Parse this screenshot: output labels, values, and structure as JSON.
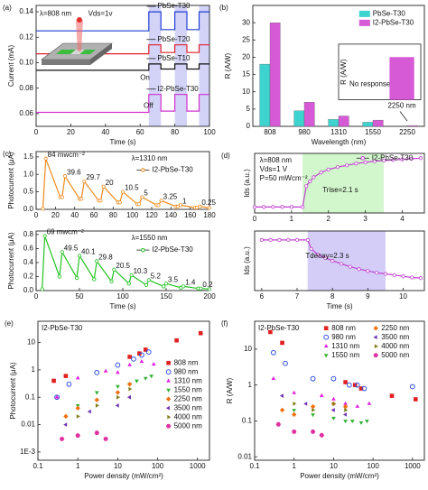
{
  "chart_data": [
    {
      "type": "line",
      "panel_label": "(a)",
      "x": [
        0,
        65,
        65,
        72,
        72,
        80,
        80,
        87,
        87,
        94,
        94,
        100
      ],
      "series": [
        {
          "name": "PbSe-T30",
          "color": "#1f3fd6",
          "values": [
            0.125,
            0.125,
            0.14,
            0.14,
            0.126,
            0.126,
            0.14,
            0.14,
            0.126,
            0.126,
            0.14,
            0.14
          ]
        },
        {
          "name": "PbSe-T20",
          "color": "#e0202a",
          "values": [
            0.107,
            0.107,
            0.114,
            0.114,
            0.108,
            0.108,
            0.114,
            0.114,
            0.108,
            0.108,
            0.114,
            0.114
          ]
        },
        {
          "name": "PbSe-T10",
          "color": "#111111",
          "values": [
            0.094,
            0.094,
            0.099,
            0.099,
            0.095,
            0.095,
            0.099,
            0.099,
            0.095,
            0.095,
            0.099,
            0.099
          ]
        },
        {
          "name": "I2-PbSe-T30",
          "color": "#d030d0",
          "values": [
            0.061,
            0.061,
            0.075,
            0.075,
            0.062,
            0.062,
            0.075,
            0.075,
            0.062,
            0.062,
            0.075,
            0.075
          ]
        }
      ],
      "xlim": [
        0,
        100
      ],
      "xticks": [
        0,
        20,
        40,
        60,
        80,
        100
      ],
      "ylim": [
        0.05,
        0.145
      ],
      "yticks": [
        0.06,
        0.08,
        {
          "value": 0.1,
          "label": "0.10"
        },
        0.12,
        0.14
      ],
      "xlabel": "Time (s)",
      "ylabel": "Current (mA)",
      "annotations": [
        "λ=808 nm",
        "Vds=1v",
        "On",
        "Off"
      ],
      "shaded_x": [
        [
          65,
          72
        ],
        [
          80,
          87
        ],
        [
          94,
          100
        ]
      ],
      "shade_color": "#c8c8f5",
      "legend": "inline"
    },
    {
      "type": "bar",
      "panel_label": "(b)",
      "categories": [
        "808",
        "980",
        "1310",
        "1550",
        "2250"
      ],
      "series": [
        {
          "name": "PbSe-T30",
          "color": "#3fd3d0",
          "values": [
            18,
            4.5,
            2,
            1.2,
            null
          ]
        },
        {
          "name": "I2-PbSe-T30",
          "color": "#d65ad6",
          "values": [
            30,
            7,
            3,
            1.8,
            0.23
          ]
        }
      ],
      "ylim": [
        0,
        35
      ],
      "yticks": [
        0,
        5,
        10,
        15,
        20,
        25,
        30
      ],
      "xlabel": "Wavelength (nm)",
      "ylabel": "R (A/W)",
      "legend": "upper right",
      "inset": {
        "ylabel": "R (A/W)",
        "note": "No response",
        "category": "2250 nm",
        "ylim": [
          0,
          0.3
        ]
      }
    },
    {
      "type": "line",
      "panel_label": "(c)",
      "markers": true,
      "x": [
        7,
        10,
        25,
        27,
        30,
        45,
        47,
        50,
        65,
        67,
        70,
        85,
        87,
        90,
        105,
        107,
        110,
        125,
        127,
        130,
        145,
        147,
        150,
        165,
        167,
        170,
        180
      ],
      "series": [
        {
          "name": "I2-PbSe-T30",
          "color": "#f08a1c",
          "values": [
            0.02,
            1.45,
            0.35,
            0.35,
            0.95,
            0.3,
            0.3,
            0.8,
            0.25,
            0.25,
            0.65,
            0.2,
            0.2,
            0.5,
            0.15,
            0.15,
            0.35,
            0.12,
            0.12,
            0.25,
            0.08,
            0.08,
            0.12,
            0.05,
            0.05,
            0.08,
            0.04
          ]
        }
      ],
      "xlim": [
        0,
        180
      ],
      "xticks": [
        0,
        20,
        40,
        60,
        80,
        100,
        120,
        140,
        160,
        180
      ],
      "ylim": [
        0,
        1.65
      ],
      "yticks": [
        {
          "value": 0,
          "label": "0.0"
        },
        0.5,
        {
          "value": 1,
          "label": "1.0"
        },
        1.5
      ],
      "ylabel": "Photocurrent (μA)",
      "annotations": [
        "λ=1310 nm"
      ],
      "peak_labels": [
        "84 mwcm⁻²",
        "39.6",
        "29.7",
        "20",
        "10.5",
        "5",
        "3.25",
        "1",
        "0.25"
      ],
      "legend": "upper right"
    },
    {
      "type": "line",
      "markers": true,
      "x": [
        7,
        10,
        27,
        27,
        30,
        47,
        47,
        50,
        67,
        67,
        70,
        87,
        87,
        90,
        107,
        107,
        110,
        127,
        127,
        130,
        147,
        147,
        150,
        167,
        167,
        170,
        187,
        187,
        190,
        200
      ],
      "series": [
        {
          "name": "I2-PbSe-T30",
          "color": "#22c322",
          "values": [
            0.02,
            0.78,
            0.2,
            0.2,
            0.55,
            0.18,
            0.18,
            0.5,
            0.16,
            0.16,
            0.42,
            0.13,
            0.13,
            0.3,
            0.1,
            0.1,
            0.22,
            0.08,
            0.08,
            0.15,
            0.06,
            0.06,
            0.1,
            0.04,
            0.04,
            0.06,
            0.03,
            0.03,
            0.03,
            0.02
          ]
        }
      ],
      "xlim": [
        0,
        200
      ],
      "xticks": [
        0,
        50,
        100,
        150,
        200
      ],
      "ylim": [
        0,
        0.85
      ],
      "yticks": [
        {
          "value": 0,
          "label": "0.0"
        },
        0.2,
        0.4,
        0.6,
        0.8
      ],
      "xlabel": "Time (s)",
      "ylabel": "Photocurrent (μA)",
      "annotations": [
        "λ=1550 nm"
      ],
      "peak_labels": [
        "69 mwcm⁻²",
        "49.5",
        "40.1",
        "29.8",
        "20.5",
        "10.3",
        "5.2",
        "3.5",
        "1.4",
        "0.2"
      ],
      "legend": "upper right"
    },
    {
      "type": "line",
      "panel_label": "(d)",
      "markers": true,
      "x": [
        0,
        0.25,
        0.5,
        0.75,
        1,
        1.3,
        1.4,
        1.5,
        1.6,
        1.8,
        2,
        2.25,
        2.5,
        2.75,
        3,
        3.25,
        3.5,
        3.75,
        4,
        4.25,
        4.5
      ],
      "series": [
        {
          "name": "I2-PbSe-T30",
          "color": "#c040d0",
          "values": [
            0.1,
            0.1,
            0.1,
            0.1,
            0.1,
            0.1,
            0.45,
            0.53,
            0.6,
            0.68,
            0.73,
            0.77,
            0.8,
            0.83,
            0.85,
            0.87,
            0.88,
            0.89,
            0.9,
            0.91,
            0.92
          ]
        }
      ],
      "xlim": [
        0,
        4.6
      ],
      "xticks": [
        0,
        1,
        2,
        3,
        4
      ],
      "ylim": [
        0,
        1
      ],
      "ylabel": "Ids (a.u.)",
      "annotations": [
        "λ=808 nm",
        "Vds=1 V",
        "P=50 mWcm⁻²",
        "Trise=2.1 s"
      ],
      "shaded_x": [
        [
          1.3,
          3.5
        ]
      ],
      "shade_color": "#c8f5c0",
      "legend": "upper right"
    },
    {
      "type": "line",
      "markers": true,
      "x": [
        6,
        6.25,
        6.5,
        6.75,
        7,
        7.3,
        7.4,
        7.6,
        7.8,
        8,
        8.25,
        8.5,
        8.75,
        9,
        9.25,
        9.5,
        9.75,
        10,
        10.25,
        10.5
      ],
      "series": [
        {
          "name": "I2-PbSe-T30",
          "color": "#c040d0",
          "values": [
            0.85,
            0.85,
            0.85,
            0.85,
            0.85,
            0.85,
            0.7,
            0.6,
            0.55,
            0.5,
            0.45,
            0.4,
            0.36,
            0.33,
            0.3,
            0.28,
            0.26,
            0.24,
            0.22,
            0.21
          ]
        }
      ],
      "xlim": [
        5.8,
        10.6
      ],
      "xticks": [
        6,
        7,
        8,
        9,
        10
      ],
      "ylim": [
        0,
        1
      ],
      "xlabel": "Time (s)",
      "ylabel": "Ids (a.u.)",
      "annotations": [
        "Tdecay=2.3 s"
      ],
      "shaded_x": [
        [
          7.3,
          9.5
        ]
      ],
      "shade_color": "#c8c0f5"
    },
    {
      "type": "scatter",
      "panel_label": "(e)",
      "subtitle": "I2-PbSe-T30",
      "xscale": "log",
      "yscale": "log",
      "xlim": [
        0.1,
        2000
      ],
      "xticks": [
        0.1,
        1,
        10,
        100,
        1000
      ],
      "ylim": [
        0.0005,
        60
      ],
      "yticks": [
        {
          "value": 0.001,
          "label": "1E-3"
        },
        0.01,
        0.1,
        1,
        10
      ],
      "xlabel": "Power density (mW/cm²)",
      "ylabel": "Photocurrent (μA)",
      "legend": "right",
      "series": [
        {
          "name": "808 nm",
          "color": "#e02020",
          "marker": "square",
          "x": [
            0.25,
            0.5,
            20,
            35,
            50,
            300,
            1200
          ],
          "values": [
            0.4,
            0.6,
            3,
            4,
            5.5,
            12,
            22
          ]
        },
        {
          "name": "980 nm",
          "color": "#3050e0",
          "marker": "circle",
          "x": [
            0.3,
            0.6,
            3,
            10,
            25,
            40,
            60
          ],
          "values": [
            0.1,
            0.3,
            0.8,
            1.5,
            2.5,
            3.5,
            4.5
          ]
        },
        {
          "name": "1310 nm",
          "color": "#e020e0",
          "marker": "triangle-up",
          "x": [
            0.3,
            1,
            5,
            10,
            20,
            40,
            80
          ],
          "values": [
            0.1,
            0.5,
            0.9,
            0.8,
            1.5,
            2,
            1.6
          ]
        },
        {
          "name": "1550 nm",
          "color": "#30b030",
          "marker": "triangle-down",
          "x": [
            1,
            3,
            10,
            20,
            30,
            50,
            70
          ],
          "values": [
            0.05,
            0.15,
            0.25,
            0.3,
            0.4,
            0.5,
            0.6
          ]
        },
        {
          "name": "2250 nm",
          "color": "#f07010",
          "marker": "diamond",
          "x": [
            0.5,
            1,
            3,
            10,
            20
          ],
          "values": [
            0.02,
            0.04,
            0.08,
            0.15,
            0.3
          ]
        },
        {
          "name": "3500 nm",
          "color": "#7030b0",
          "marker": "triangle-left",
          "x": [
            0.5,
            2,
            10,
            20
          ],
          "values": [
            0.01,
            0.03,
            0.05,
            0.1
          ]
        },
        {
          "name": "4000 nm",
          "color": "#808020",
          "marker": "triangle-right",
          "x": [
            1,
            3,
            10,
            20
          ],
          "values": [
            0.02,
            0.05,
            0.1,
            0.2
          ]
        },
        {
          "name": "5000 nm",
          "color": "#e030a0",
          "marker": "hexagon",
          "x": [
            0.4,
            1,
            3,
            5
          ],
          "values": [
            0.003,
            0.004,
            0.005,
            0.003
          ]
        }
      ]
    },
    {
      "type": "scatter",
      "panel_label": "(f)",
      "subtitle": "I2-PbSe-T30",
      "xscale": "log",
      "yscale": "log",
      "xlim": [
        0.1,
        2000
      ],
      "xticks": [
        0.1,
        1,
        10,
        100,
        1000
      ],
      "ylim": [
        0.008,
        60
      ],
      "yticks": [
        0.01,
        0.1,
        1,
        10
      ],
      "xlabel": "Power density (mW/cm²)",
      "ylabel": "R (A/W)",
      "legend": "upper right",
      "series": [
        {
          "name": "808 nm",
          "color": "#e02020",
          "marker": "square",
          "x": [
            0.25,
            0.5,
            20,
            35,
            50,
            300,
            1200
          ],
          "values": [
            30,
            15,
            1.2,
            1,
            0.8,
            0.5,
            0.4
          ]
        },
        {
          "name": "980 nm",
          "color": "#3050e0",
          "marker": "circle",
          "x": [
            0.3,
            0.6,
            3,
            10,
            25,
            40,
            60,
            1000
          ],
          "values": [
            8,
            4,
            1.5,
            1.5,
            1,
            1,
            0.8,
            0.9
          ]
        },
        {
          "name": "1310 nm",
          "color": "#e020e0",
          "marker": "triangle-up",
          "x": [
            0.3,
            1,
            5,
            10,
            20,
            40,
            80
          ],
          "values": [
            1.5,
            0.6,
            0.5,
            0.4,
            0.3,
            0.25,
            0.3
          ]
        },
        {
          "name": "1550 nm",
          "color": "#30b030",
          "marker": "triangle-down",
          "x": [
            1,
            3,
            10,
            20,
            30,
            50,
            70
          ],
          "values": [
            0.2,
            0.15,
            0.12,
            0.1,
            0.1,
            0.09,
            0.1
          ]
        },
        {
          "name": "2250 nm",
          "color": "#f07010",
          "marker": "diamond",
          "x": [
            0.5,
            1,
            3,
            10,
            20
          ],
          "values": [
            0.2,
            0.15,
            0.25,
            0.3,
            0.25
          ]
        },
        {
          "name": "3500 nm",
          "color": "#7030b0",
          "marker": "triangle-left",
          "x": [
            0.5,
            2,
            10,
            20
          ],
          "values": [
            0.5,
            0.3,
            0.2,
            0.15
          ]
        },
        {
          "name": "4000 nm",
          "color": "#808020",
          "marker": "triangle-right",
          "x": [
            1,
            3,
            10,
            20
          ],
          "values": [
            0.3,
            0.2,
            0.3,
            0.2
          ]
        },
        {
          "name": "5000 nm",
          "color": "#e030a0",
          "marker": "hexagon",
          "x": [
            0.4,
            1,
            3,
            5
          ],
          "values": [
            0.08,
            0.05,
            0.05,
            0.04
          ]
        }
      ]
    }
  ]
}
